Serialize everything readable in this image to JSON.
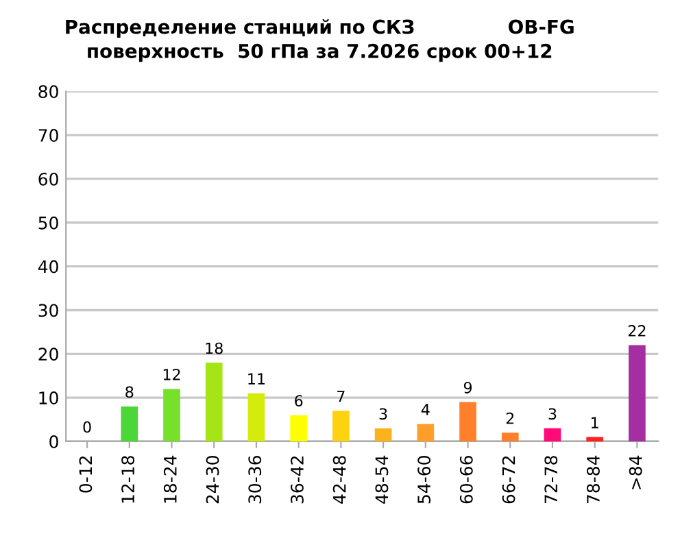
{
  "chart_data": {
    "type": "bar",
    "title": "Распределение станций по СКЗ              OB-FG\nповерхность  50 гПа за 7.2026 срок 00+12",
    "categories": [
      "0-12",
      "12-18",
      "18-24",
      "24-30",
      "30-36",
      "36-42",
      "42-48",
      "48-54",
      "54-60",
      "60-66",
      "66-72",
      "72-78",
      "78-84",
      ">84"
    ],
    "values": [
      0,
      8,
      12,
      18,
      11,
      6,
      7,
      3,
      4,
      9,
      2,
      3,
      1,
      22
    ],
    "colors": [
      "#3fd13f",
      "#4dd63a",
      "#77e02a",
      "#a5e516",
      "#d4ec0c",
      "#ffff00",
      "#ffd20f",
      "#fbb21c",
      "#ff9f2a",
      "#ff7f2a",
      "#ff7f2a",
      "#ff0a78",
      "#ff2020",
      "#a52fa0"
    ],
    "ylim": [
      0,
      80
    ],
    "yticks": [
      0,
      10,
      20,
      30,
      40,
      50,
      60,
      70,
      80
    ],
    "grid": "y",
    "data_labels": true
  }
}
